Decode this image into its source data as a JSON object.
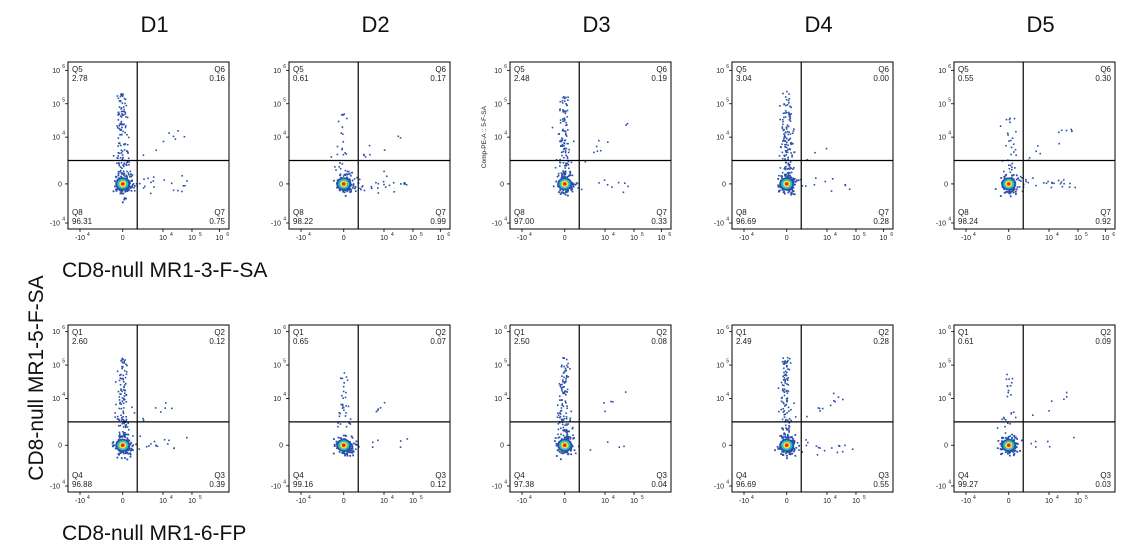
{
  "figure": {
    "y_label": "CD8-null MR1-5-F-SA"
  },
  "chart_data": {
    "type": "scatter",
    "plot_type": "flow cytometry quadrant dot plots",
    "columns": [
      "D1",
      "D2",
      "D3",
      "D4",
      "D5"
    ],
    "y_axis_label": "CD8-null MR1-5-F-SA",
    "rows": [
      {
        "label": "CD8-null MR1-3-F-SA",
        "quadrant_names": [
          "Q5",
          "Q6",
          "Q7",
          "Q8"
        ],
        "y_ticks": [
          "-10",
          "0",
          "10",
          "10",
          "10"
        ],
        "y_tick_exponents": [
          "4",
          "",
          "4",
          "5",
          "6"
        ],
        "x_ticks": [
          "-10",
          "0",
          "10",
          "10",
          "10"
        ],
        "x_tick_exponents": [
          "4",
          "",
          "4",
          "5",
          "6"
        ],
        "panels": [
          {
            "column": "D1",
            "Q5": "2.78",
            "Q6": "0.16",
            "Q7": "0.75",
            "Q8": "96.31"
          },
          {
            "column": "D2",
            "Q5": "0.61",
            "Q6": "0.17",
            "Q7": "0.99",
            "Q8": "98.22"
          },
          {
            "column": "D3",
            "Q5": "2.48",
            "Q6": "0.19",
            "Q7": "0.33",
            "Q8": "97.00",
            "y_axis_title": "Comp-PE-A :: 5-F-SA"
          },
          {
            "column": "D4",
            "Q5": "3.04",
            "Q6": "0.00",
            "Q7": "0.28",
            "Q8": "96.69"
          },
          {
            "column": "D5",
            "Q5": "0.55",
            "Q6": "0.30",
            "Q7": "0.92",
            "Q8": "98.24"
          }
        ]
      },
      {
        "label": "CD8-null MR1-6-FP",
        "quadrant_names": [
          "Q1",
          "Q2",
          "Q3",
          "Q4"
        ],
        "y_ticks": [
          "-10",
          "0",
          "10",
          "10",
          "10"
        ],
        "y_tick_exponents": [
          "4",
          "",
          "4",
          "5",
          "6"
        ],
        "x_ticks": [
          "-10",
          "0",
          "10",
          "10"
        ],
        "x_tick_exponents": [
          "4",
          "",
          "4",
          "5"
        ],
        "panels": [
          {
            "column": "D1",
            "Q1": "2.60",
            "Q2": "0.12",
            "Q3": "0.39",
            "Q4": "96.88"
          },
          {
            "column": "D2",
            "Q1": "0.65",
            "Q2": "0.07",
            "Q3": "0.12",
            "Q4": "99.16"
          },
          {
            "column": "D3",
            "Q1": "2.50",
            "Q2": "0.08",
            "Q3": "0.04",
            "Q4": "97.38"
          },
          {
            "column": "D4",
            "Q1": "2.49",
            "Q2": "0.28",
            "Q3": "0.55",
            "Q4": "96.69"
          },
          {
            "column": "D5",
            "Q1": "0.61",
            "Q2": "0.09",
            "Q3": "0.03",
            "Q4": "99.27"
          }
        ]
      }
    ],
    "colors": {
      "low_density": "#2a4fa8",
      "mid_density": "#27c1c9",
      "high_density": "#f7e01c",
      "peak_density": "#e8251f"
    }
  }
}
